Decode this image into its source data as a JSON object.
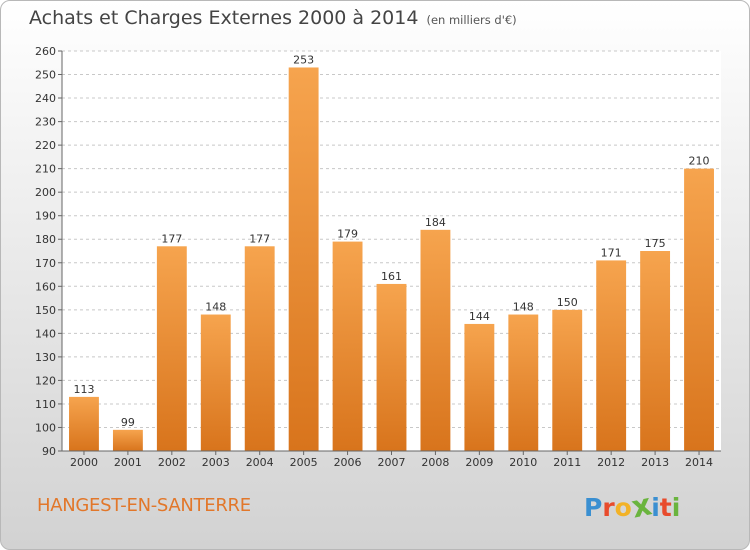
{
  "header": {
    "title": "Achats et Charges Externes 2000 à 2014",
    "unit": "(en milliers d'€)"
  },
  "footer": {
    "town": "HANGEST-EN-SANTERRE",
    "logo_letters": [
      "P",
      "r",
      "o",
      "x",
      "i",
      "t",
      "i"
    ],
    "logo_colors": [
      "#3a8fd1",
      "#e84b2c",
      "#f2b227",
      "#6ab43e",
      "#3a8fd1",
      "#e84b2c",
      "#6ab43e"
    ]
  },
  "colors": {
    "bar_light": "#f6a44e",
    "bar_dark": "#d8741c",
    "grid": "#c8c8c8",
    "plot_bg": "#ffffff"
  },
  "chart_data": {
    "type": "bar",
    "title": "Achats et Charges Externes 2000 à 2014",
    "subtitle": "(en milliers d'€)",
    "categories": [
      "2000",
      "2001",
      "2002",
      "2003",
      "2004",
      "2005",
      "2006",
      "2007",
      "2008",
      "2009",
      "2010",
      "2011",
      "2012",
      "2013",
      "2014"
    ],
    "values": [
      113,
      99,
      177,
      148,
      177,
      253,
      179,
      161,
      184,
      144,
      148,
      150,
      171,
      175,
      210
    ],
    "ylim": [
      90,
      260
    ],
    "ytick_step": 10,
    "grid": true,
    "data_labels": true
  }
}
